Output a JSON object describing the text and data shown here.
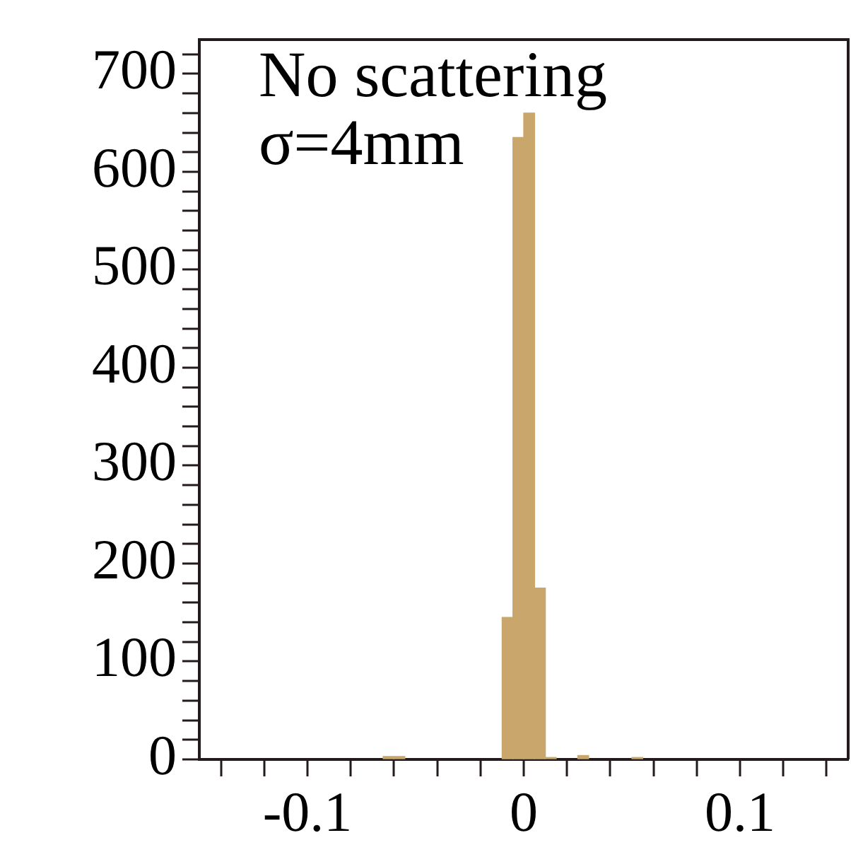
{
  "chart_data": {
    "type": "histogram",
    "bins": [
      -0.15,
      -0.145,
      -0.14,
      -0.135,
      -0.13,
      -0.125,
      -0.12,
      -0.115,
      -0.11,
      -0.105,
      -0.1,
      -0.095,
      -0.09,
      -0.085,
      -0.08,
      -0.075,
      -0.07,
      -0.065,
      -0.06,
      -0.055,
      -0.05,
      -0.045,
      -0.04,
      -0.035,
      -0.03,
      -0.025,
      -0.02,
      -0.015,
      -0.01,
      -0.005,
      0,
      0.005,
      0.01,
      0.015,
      0.02,
      0.025,
      0.03,
      0.035,
      0.04,
      0.045,
      0.05,
      0.055,
      0.06,
      0.065,
      0.07,
      0.075,
      0.08,
      0.085,
      0.09,
      0.095,
      0.1,
      0.105,
      0.11,
      0.115,
      0.12,
      0.125,
      0.13,
      0.135,
      0.14,
      0.145,
      0.15
    ],
    "values": [
      null,
      null,
      null,
      null,
      null,
      null,
      null,
      null,
      null,
      null,
      null,
      null,
      null,
      null,
      null,
      null,
      null,
      3,
      3,
      null,
      null,
      null,
      null,
      null,
      null,
      null,
      null,
      null,
      145,
      635,
      660,
      175,
      2,
      null,
      null,
      4,
      null,
      null,
      null,
      null,
      2,
      null,
      null,
      null,
      null,
      null,
      null,
      null,
      null,
      null,
      null,
      null,
      null,
      null,
      null,
      null,
      null,
      null,
      null,
      null
    ],
    "color": "#c9a66b",
    "xlim": [
      -0.15,
      0.15
    ],
    "xticks": [
      {
        "value": -0.14,
        "label": null
      },
      {
        "value": -0.12,
        "label": null
      },
      -0.1,
      {
        "value": -0.08,
        "label": null
      },
      {
        "value": -0.06,
        "label": null
      },
      {
        "value": -0.04,
        "label": null
      },
      {
        "value": -0.02,
        "label": null
      },
      0,
      {
        "value": 0.02,
        "label": null
      },
      {
        "value": 0.04,
        "label": null
      },
      {
        "value": 0.06,
        "label": null
      },
      {
        "value": 0.08,
        "label": null
      },
      0.1,
      {
        "value": 0.12,
        "label": null
      },
      {
        "value": 0.14,
        "label": null
      }
    ],
    "ylim": [
      0,
      735
    ],
    "yticks": [
      0,
      {
        "value": 20,
        "label": null
      },
      {
        "value": 40,
        "label": null
      },
      {
        "value": 60,
        "label": null
      },
      {
        "value": 80,
        "label": null
      },
      100,
      {
        "value": 120,
        "label": null
      },
      {
        "value": 140,
        "label": null
      },
      {
        "value": 160,
        "label": null
      },
      {
        "value": 180,
        "label": null
      },
      200,
      {
        "value": 220,
        "label": null
      },
      {
        "value": 240,
        "label": null
      },
      {
        "value": 260,
        "label": null
      },
      {
        "value": 280,
        "label": null
      },
      300,
      {
        "value": 320,
        "label": null
      },
      {
        "value": 340,
        "label": null
      },
      {
        "value": 360,
        "label": null
      },
      {
        "value": 380,
        "label": null
      },
      400,
      {
        "value": 420,
        "label": null
      },
      {
        "value": 440,
        "label": null
      },
      {
        "value": 460,
        "label": null
      },
      {
        "value": 480,
        "label": null
      },
      500,
      {
        "value": 520,
        "label": null
      },
      {
        "value": 540,
        "label": null
      },
      {
        "value": 560,
        "label": null
      },
      {
        "value": 580,
        "label": null
      },
      600,
      {
        "value": 620,
        "label": null
      },
      {
        "value": 640,
        "label": null
      },
      {
        "value": 660,
        "label": null
      },
      {
        "value": 680,
        "label": null
      },
      700,
      {
        "value": 720,
        "label": null
      }
    ],
    "annotations": [
      "No scattering",
      "σ=4mm"
    ],
    "grid": false,
    "legend": false
  }
}
